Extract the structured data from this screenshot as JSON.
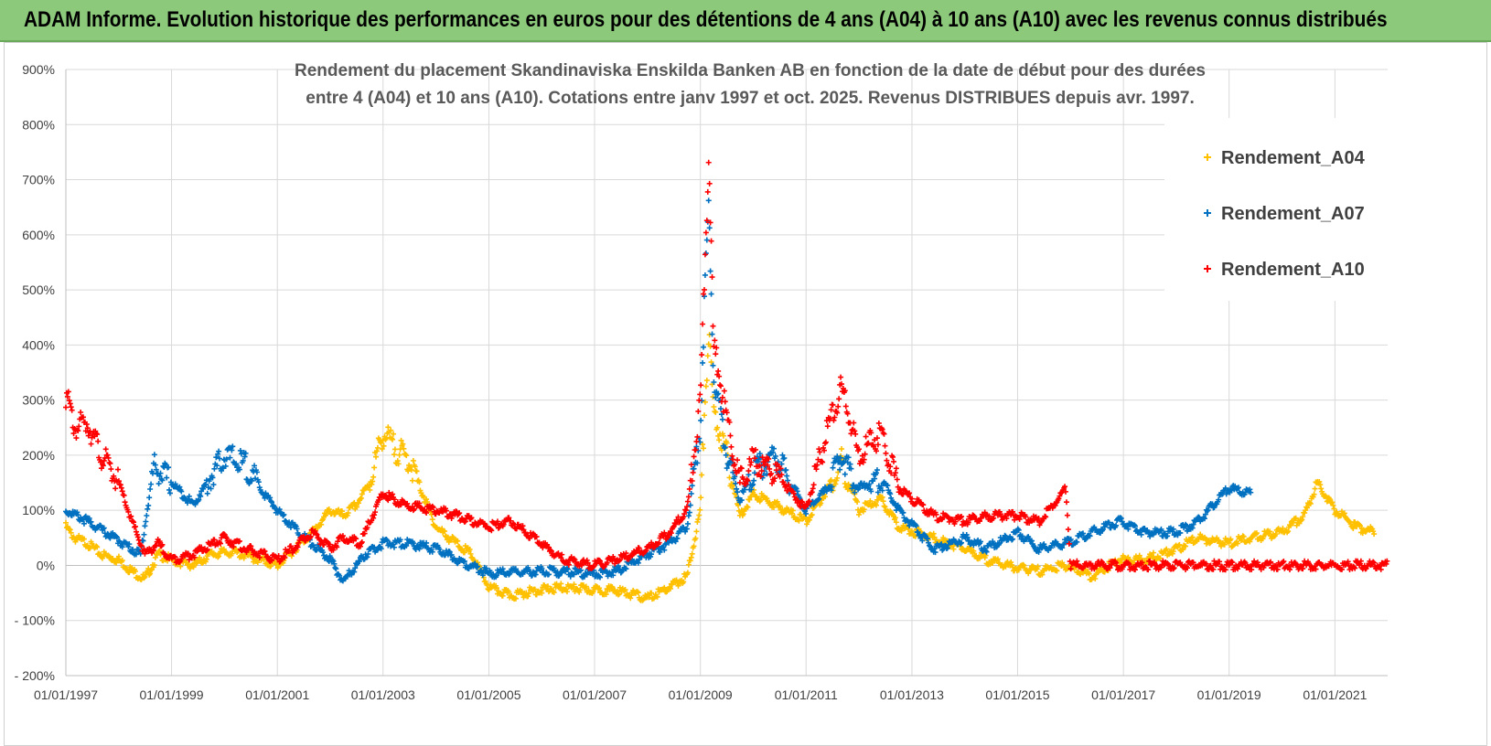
{
  "banner": {
    "title": "ADAM Informe. Evolution historique des performances en euros pour des détentions de 4 ans (A04) à 10 ans (A10) avec les revenus connus distribués"
  },
  "colors": {
    "A04": "#ffc000",
    "A07": "#0070c0",
    "A10": "#ff0000",
    "banner": "#8cc97a"
  },
  "chart_data": {
    "type": "scatter",
    "title": "Rendement du placement Skandinaviska Enskilda Banken AB en fonction de la date de début pour des durées entre 4 (A04) et 10 ans (A10). Cotations entre janv 1997 et oct. 2025. Revenus DISTRIBUES depuis avr. 1997.",
    "title_lines": [
      "Rendement du placement Skandinaviska Enskilda Banken AB en fonction de la date de début pour des durées",
      "entre 4 (A04) et 10 ans (A10). Cotations entre janv 1997 et oct. 2025. Revenus DISTRIBUES depuis avr. 1997."
    ],
    "x_type": "date",
    "xlim": [
      "1997-01-01",
      "2021-12-31"
    ],
    "ylim": [
      -200,
      900
    ],
    "y_unit": "%",
    "x_tick_labels": [
      "01/01/1997",
      "01/01/1999",
      "01/01/2001",
      "01/01/2003",
      "01/01/2005",
      "01/01/2007",
      "01/01/2009",
      "01/01/2011",
      "01/01/2013",
      "01/01/2015",
      "01/01/2017",
      "01/01/2019",
      "01/01/2021"
    ],
    "y_tick_labels": [
      "- 200%",
      "- 100%",
      "0%",
      "100%",
      "200%",
      "300%",
      "400%",
      "500%",
      "600%",
      "700%",
      "800%",
      "900%"
    ],
    "grid": true,
    "legend_position": "right",
    "marker": "plus",
    "series": [
      {
        "name": "Rendement_A04",
        "color": "#ffc000",
        "points": [
          [
            "1997-01-01",
            70
          ],
          [
            "1997-03-01",
            50
          ],
          [
            "1997-06-01",
            40
          ],
          [
            "1997-09-01",
            20
          ],
          [
            "1998-01-01",
            10
          ],
          [
            "1998-04-01",
            -10
          ],
          [
            "1998-07-01",
            -25
          ],
          [
            "1998-10-01",
            20
          ],
          [
            "1999-01-01",
            10
          ],
          [
            "1999-06-01",
            0
          ],
          [
            "1999-10-01",
            20
          ],
          [
            "2000-03-01",
            25
          ],
          [
            "2000-09-01",
            10
          ],
          [
            "2001-01-01",
            0
          ],
          [
            "2001-05-01",
            30
          ],
          [
            "2001-09-01",
            60
          ],
          [
            "2002-01-01",
            100
          ],
          [
            "2002-04-01",
            90
          ],
          [
            "2002-07-01",
            110
          ],
          [
            "2002-10-01",
            150
          ],
          [
            "2003-01-01",
            240
          ],
          [
            "2003-04-01",
            210
          ],
          [
            "2003-07-01",
            190
          ],
          [
            "2003-10-01",
            130
          ],
          [
            "2004-01-01",
            70
          ],
          [
            "2004-04-01",
            50
          ],
          [
            "2004-09-01",
            20
          ],
          [
            "2005-01-01",
            -40
          ],
          [
            "2005-06-01",
            -55
          ],
          [
            "2005-12-01",
            -45
          ],
          [
            "2006-06-01",
            -40
          ],
          [
            "2007-01-01",
            -45
          ],
          [
            "2007-06-01",
            -45
          ],
          [
            "2008-01-01",
            -60
          ],
          [
            "2008-06-01",
            -40
          ],
          [
            "2008-10-01",
            -20
          ],
          [
            "2009-01-01",
            100
          ],
          [
            "2009-02-01",
            300
          ],
          [
            "2009-03-01",
            420
          ],
          [
            "2009-04-01",
            280
          ],
          [
            "2009-07-01",
            200
          ],
          [
            "2009-10-01",
            90
          ],
          [
            "2010-01-01",
            130
          ],
          [
            "2010-06-01",
            110
          ],
          [
            "2011-01-01",
            80
          ],
          [
            "2011-06-01",
            140
          ],
          [
            "2011-09-01",
            190
          ],
          [
            "2012-01-01",
            100
          ],
          [
            "2012-06-01",
            120
          ],
          [
            "2012-10-01",
            70
          ],
          [
            "2013-06-01",
            50
          ],
          [
            "2014-01-01",
            30
          ],
          [
            "2014-06-01",
            10
          ],
          [
            "2015-01-01",
            -5
          ],
          [
            "2015-06-01",
            -10
          ],
          [
            "2015-12-01",
            0
          ],
          [
            "2016-06-01",
            -20
          ],
          [
            "2016-12-01",
            10
          ],
          [
            "2017-06-01",
            10
          ],
          [
            "2018-01-01",
            30
          ],
          [
            "2018-06-01",
            50
          ],
          [
            "2019-01-01",
            40
          ],
          [
            "2019-06-01",
            50
          ],
          [
            "2020-01-01",
            60
          ],
          [
            "2020-06-01",
            90
          ],
          [
            "2020-09-01",
            150
          ],
          [
            "2021-01-01",
            100
          ],
          [
            "2021-06-01",
            70
          ],
          [
            "2021-10-01",
            60
          ]
        ]
      },
      {
        "name": "Rendement_A07",
        "color": "#0070c0",
        "points": [
          [
            "1997-01-01",
            100
          ],
          [
            "1997-06-01",
            80
          ],
          [
            "1997-12-01",
            50
          ],
          [
            "1998-06-01",
            20
          ],
          [
            "1998-09-01",
            180
          ],
          [
            "1999-01-01",
            150
          ],
          [
            "1999-06-01",
            110
          ],
          [
            "2000-01-01",
            200
          ],
          [
            "2000-06-01",
            180
          ],
          [
            "2000-10-01",
            130
          ],
          [
            "2001-01-01",
            100
          ],
          [
            "2001-06-01",
            60
          ],
          [
            "2002-01-01",
            10
          ],
          [
            "2002-04-01",
            -30
          ],
          [
            "2002-09-01",
            20
          ],
          [
            "2003-01-01",
            40
          ],
          [
            "2003-06-01",
            40
          ],
          [
            "2004-01-01",
            30
          ],
          [
            "2004-06-01",
            10
          ],
          [
            "2005-01-01",
            -15
          ],
          [
            "2006-01-01",
            -10
          ],
          [
            "2007-01-01",
            -15
          ],
          [
            "2007-06-01",
            -10
          ],
          [
            "2008-01-01",
            20
          ],
          [
            "2008-06-01",
            40
          ],
          [
            "2008-10-01",
            70
          ],
          [
            "2009-01-01",
            250
          ],
          [
            "2009-02-01",
            500
          ],
          [
            "2009-03-01",
            650
          ],
          [
            "2009-04-01",
            350
          ],
          [
            "2009-07-01",
            200
          ],
          [
            "2009-10-01",
            120
          ],
          [
            "2010-01-01",
            170
          ],
          [
            "2010-06-01",
            200
          ],
          [
            "2011-01-01",
            100
          ],
          [
            "2011-06-01",
            140
          ],
          [
            "2011-09-01",
            200
          ],
          [
            "2012-01-01",
            140
          ],
          [
            "2012-06-01",
            160
          ],
          [
            "2012-10-01",
            100
          ],
          [
            "2013-06-01",
            30
          ],
          [
            "2014-01-01",
            50
          ],
          [
            "2014-06-01",
            30
          ],
          [
            "2015-01-01",
            60
          ],
          [
            "2015-06-01",
            30
          ],
          [
            "2015-12-01",
            40
          ],
          [
            "2016-06-01",
            60
          ],
          [
            "2016-12-01",
            80
          ],
          [
            "2017-06-01",
            60
          ],
          [
            "2018-01-01",
            60
          ],
          [
            "2018-06-01",
            80
          ],
          [
            "2019-01-01",
            140
          ],
          [
            "2019-06-01",
            130
          ]
        ]
      },
      {
        "name": "Rendement_A10",
        "color": "#ff0000",
        "points": [
          [
            "1997-01-01",
            310
          ],
          [
            "1997-03-01",
            250
          ],
          [
            "1997-06-01",
            260
          ],
          [
            "1997-09-01",
            200
          ],
          [
            "1998-01-01",
            150
          ],
          [
            "1998-04-01",
            80
          ],
          [
            "1998-07-01",
            20
          ],
          [
            "1998-10-01",
            40
          ],
          [
            "1999-01-01",
            10
          ],
          [
            "1999-06-01",
            20
          ],
          [
            "2000-01-01",
            50
          ],
          [
            "2000-06-01",
            30
          ],
          [
            "2001-01-01",
            10
          ],
          [
            "2001-06-01",
            40
          ],
          [
            "2001-09-01",
            60
          ],
          [
            "2002-01-01",
            30
          ],
          [
            "2002-04-01",
            50
          ],
          [
            "2002-08-01",
            40
          ],
          [
            "2002-10-01",
            80
          ],
          [
            "2003-01-01",
            130
          ],
          [
            "2003-06-01",
            110
          ],
          [
            "2004-01-01",
            100
          ],
          [
            "2004-06-01",
            90
          ],
          [
            "2005-01-01",
            70
          ],
          [
            "2005-06-01",
            80
          ],
          [
            "2006-01-01",
            40
          ],
          [
            "2006-06-01",
            10
          ],
          [
            "2007-01-01",
            0
          ],
          [
            "2007-06-01",
            10
          ],
          [
            "2008-01-01",
            30
          ],
          [
            "2008-06-01",
            60
          ],
          [
            "2008-10-01",
            100
          ],
          [
            "2009-01-01",
            300
          ],
          [
            "2009-02-01",
            550
          ],
          [
            "2009-03-01",
            750
          ],
          [
            "2009-04-01",
            400
          ],
          [
            "2009-07-01",
            270
          ],
          [
            "2009-10-01",
            150
          ],
          [
            "2010-01-01",
            190
          ],
          [
            "2010-06-01",
            170
          ],
          [
            "2011-01-01",
            100
          ],
          [
            "2011-06-01",
            250
          ],
          [
            "2011-09-01",
            320
          ],
          [
            "2012-01-01",
            200
          ],
          [
            "2012-06-01",
            240
          ],
          [
            "2012-10-01",
            140
          ],
          [
            "2013-06-01",
            90
          ],
          [
            "2014-01-01",
            80
          ],
          [
            "2014-06-01",
            90
          ],
          [
            "2015-01-01",
            90
          ],
          [
            "2015-06-01",
            80
          ],
          [
            "2015-12-01",
            140
          ],
          [
            "2016-01-01",
            0
          ],
          [
            "2021-12-31",
            0
          ]
        ]
      }
    ]
  }
}
